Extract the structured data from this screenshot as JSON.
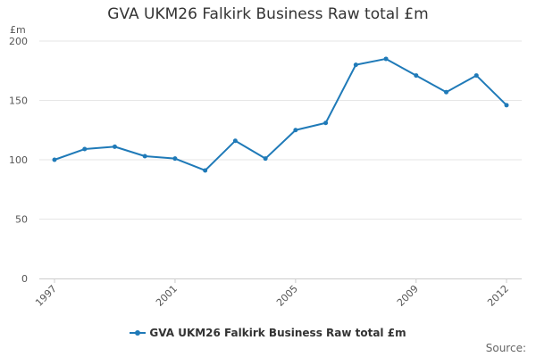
{
  "chart_data": {
    "type": "line",
    "title": "GVA UKM26 Falkirk Business Raw total £m",
    "ylabel": "£m",
    "xlabel": "",
    "ylim": [
      0,
      200
    ],
    "yticks": [
      0,
      50,
      100,
      150,
      200
    ],
    "x": [
      1997,
      1998,
      1999,
      2000,
      2001,
      2002,
      2003,
      2004,
      2005,
      2006,
      2007,
      2008,
      2009,
      2010,
      2011,
      2012
    ],
    "xtick_labels": [
      "1997",
      "2001",
      "2005",
      "2009",
      "2012"
    ],
    "series": [
      {
        "name": "GVA UKM26 Falkirk Business Raw total £m",
        "color": "#1f7ab8",
        "values": [
          100,
          109,
          111,
          103,
          101,
          91,
          116,
          101,
          125,
          131,
          180,
          185,
          171,
          157,
          171,
          146
        ]
      }
    ],
    "grid": true,
    "legend": "bottom-center"
  },
  "source_label": "Source:"
}
